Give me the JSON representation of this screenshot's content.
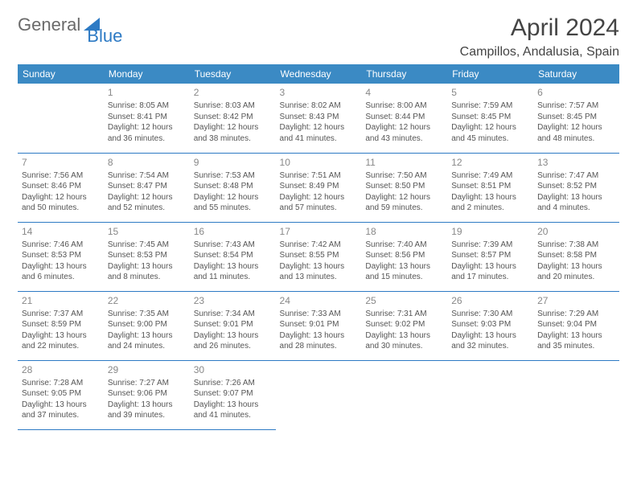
{
  "logo": {
    "text1": "General",
    "text2": "Blue"
  },
  "title": "April 2024",
  "location": "Campillos, Andalusia, Spain",
  "colors": {
    "header_bg": "#3b8ac4",
    "header_text": "#ffffff",
    "border": "#2d7ac4",
    "daynum": "#888888",
    "body_text": "#555555",
    "title_color": "#444444",
    "logo_gray": "#6a6a6a",
    "logo_blue": "#2d7ac4",
    "background": "#ffffff"
  },
  "week_headers": [
    "Sunday",
    "Monday",
    "Tuesday",
    "Wednesday",
    "Thursday",
    "Friday",
    "Saturday"
  ],
  "weeks": [
    [
      {
        "day": "",
        "sunrise": "",
        "sunset": "",
        "daylight1": "",
        "daylight2": ""
      },
      {
        "day": "1",
        "sunrise": "Sunrise: 8:05 AM",
        "sunset": "Sunset: 8:41 PM",
        "daylight1": "Daylight: 12 hours",
        "daylight2": "and 36 minutes."
      },
      {
        "day": "2",
        "sunrise": "Sunrise: 8:03 AM",
        "sunset": "Sunset: 8:42 PM",
        "daylight1": "Daylight: 12 hours",
        "daylight2": "and 38 minutes."
      },
      {
        "day": "3",
        "sunrise": "Sunrise: 8:02 AM",
        "sunset": "Sunset: 8:43 PM",
        "daylight1": "Daylight: 12 hours",
        "daylight2": "and 41 minutes."
      },
      {
        "day": "4",
        "sunrise": "Sunrise: 8:00 AM",
        "sunset": "Sunset: 8:44 PM",
        "daylight1": "Daylight: 12 hours",
        "daylight2": "and 43 minutes."
      },
      {
        "day": "5",
        "sunrise": "Sunrise: 7:59 AM",
        "sunset": "Sunset: 8:45 PM",
        "daylight1": "Daylight: 12 hours",
        "daylight2": "and 45 minutes."
      },
      {
        "day": "6",
        "sunrise": "Sunrise: 7:57 AM",
        "sunset": "Sunset: 8:45 PM",
        "daylight1": "Daylight: 12 hours",
        "daylight2": "and 48 minutes."
      }
    ],
    [
      {
        "day": "7",
        "sunrise": "Sunrise: 7:56 AM",
        "sunset": "Sunset: 8:46 PM",
        "daylight1": "Daylight: 12 hours",
        "daylight2": "and 50 minutes."
      },
      {
        "day": "8",
        "sunrise": "Sunrise: 7:54 AM",
        "sunset": "Sunset: 8:47 PM",
        "daylight1": "Daylight: 12 hours",
        "daylight2": "and 52 minutes."
      },
      {
        "day": "9",
        "sunrise": "Sunrise: 7:53 AM",
        "sunset": "Sunset: 8:48 PM",
        "daylight1": "Daylight: 12 hours",
        "daylight2": "and 55 minutes."
      },
      {
        "day": "10",
        "sunrise": "Sunrise: 7:51 AM",
        "sunset": "Sunset: 8:49 PM",
        "daylight1": "Daylight: 12 hours",
        "daylight2": "and 57 minutes."
      },
      {
        "day": "11",
        "sunrise": "Sunrise: 7:50 AM",
        "sunset": "Sunset: 8:50 PM",
        "daylight1": "Daylight: 12 hours",
        "daylight2": "and 59 minutes."
      },
      {
        "day": "12",
        "sunrise": "Sunrise: 7:49 AM",
        "sunset": "Sunset: 8:51 PM",
        "daylight1": "Daylight: 13 hours",
        "daylight2": "and 2 minutes."
      },
      {
        "day": "13",
        "sunrise": "Sunrise: 7:47 AM",
        "sunset": "Sunset: 8:52 PM",
        "daylight1": "Daylight: 13 hours",
        "daylight2": "and 4 minutes."
      }
    ],
    [
      {
        "day": "14",
        "sunrise": "Sunrise: 7:46 AM",
        "sunset": "Sunset: 8:53 PM",
        "daylight1": "Daylight: 13 hours",
        "daylight2": "and 6 minutes."
      },
      {
        "day": "15",
        "sunrise": "Sunrise: 7:45 AM",
        "sunset": "Sunset: 8:53 PM",
        "daylight1": "Daylight: 13 hours",
        "daylight2": "and 8 minutes."
      },
      {
        "day": "16",
        "sunrise": "Sunrise: 7:43 AM",
        "sunset": "Sunset: 8:54 PM",
        "daylight1": "Daylight: 13 hours",
        "daylight2": "and 11 minutes."
      },
      {
        "day": "17",
        "sunrise": "Sunrise: 7:42 AM",
        "sunset": "Sunset: 8:55 PM",
        "daylight1": "Daylight: 13 hours",
        "daylight2": "and 13 minutes."
      },
      {
        "day": "18",
        "sunrise": "Sunrise: 7:40 AM",
        "sunset": "Sunset: 8:56 PM",
        "daylight1": "Daylight: 13 hours",
        "daylight2": "and 15 minutes."
      },
      {
        "day": "19",
        "sunrise": "Sunrise: 7:39 AM",
        "sunset": "Sunset: 8:57 PM",
        "daylight1": "Daylight: 13 hours",
        "daylight2": "and 17 minutes."
      },
      {
        "day": "20",
        "sunrise": "Sunrise: 7:38 AM",
        "sunset": "Sunset: 8:58 PM",
        "daylight1": "Daylight: 13 hours",
        "daylight2": "and 20 minutes."
      }
    ],
    [
      {
        "day": "21",
        "sunrise": "Sunrise: 7:37 AM",
        "sunset": "Sunset: 8:59 PM",
        "daylight1": "Daylight: 13 hours",
        "daylight2": "and 22 minutes."
      },
      {
        "day": "22",
        "sunrise": "Sunrise: 7:35 AM",
        "sunset": "Sunset: 9:00 PM",
        "daylight1": "Daylight: 13 hours",
        "daylight2": "and 24 minutes."
      },
      {
        "day": "23",
        "sunrise": "Sunrise: 7:34 AM",
        "sunset": "Sunset: 9:01 PM",
        "daylight1": "Daylight: 13 hours",
        "daylight2": "and 26 minutes."
      },
      {
        "day": "24",
        "sunrise": "Sunrise: 7:33 AM",
        "sunset": "Sunset: 9:01 PM",
        "daylight1": "Daylight: 13 hours",
        "daylight2": "and 28 minutes."
      },
      {
        "day": "25",
        "sunrise": "Sunrise: 7:31 AM",
        "sunset": "Sunset: 9:02 PM",
        "daylight1": "Daylight: 13 hours",
        "daylight2": "and 30 minutes."
      },
      {
        "day": "26",
        "sunrise": "Sunrise: 7:30 AM",
        "sunset": "Sunset: 9:03 PM",
        "daylight1": "Daylight: 13 hours",
        "daylight2": "and 32 minutes."
      },
      {
        "day": "27",
        "sunrise": "Sunrise: 7:29 AM",
        "sunset": "Sunset: 9:04 PM",
        "daylight1": "Daylight: 13 hours",
        "daylight2": "and 35 minutes."
      }
    ],
    [
      {
        "day": "28",
        "sunrise": "Sunrise: 7:28 AM",
        "sunset": "Sunset: 9:05 PM",
        "daylight1": "Daylight: 13 hours",
        "daylight2": "and 37 minutes."
      },
      {
        "day": "29",
        "sunrise": "Sunrise: 7:27 AM",
        "sunset": "Sunset: 9:06 PM",
        "daylight1": "Daylight: 13 hours",
        "daylight2": "and 39 minutes."
      },
      {
        "day": "30",
        "sunrise": "Sunrise: 7:26 AM",
        "sunset": "Sunset: 9:07 PM",
        "daylight1": "Daylight: 13 hours",
        "daylight2": "and 41 minutes."
      },
      {
        "day": "",
        "sunrise": "",
        "sunset": "",
        "daylight1": "",
        "daylight2": ""
      },
      {
        "day": "",
        "sunrise": "",
        "sunset": "",
        "daylight1": "",
        "daylight2": ""
      },
      {
        "day": "",
        "sunrise": "",
        "sunset": "",
        "daylight1": "",
        "daylight2": ""
      },
      {
        "day": "",
        "sunrise": "",
        "sunset": "",
        "daylight1": "",
        "daylight2": ""
      }
    ]
  ]
}
